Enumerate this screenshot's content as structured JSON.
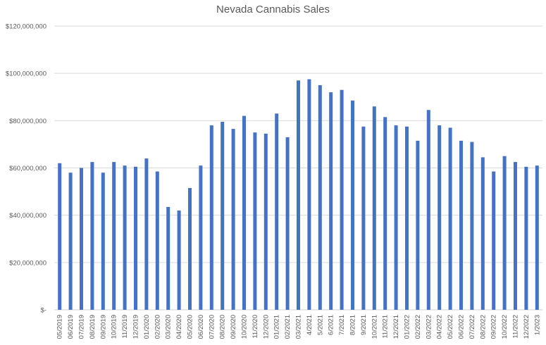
{
  "chart_data": {
    "type": "bar",
    "title": "Nevada Cannabis Sales",
    "xlabel": "",
    "ylabel": "",
    "ylim": [
      0,
      120000000
    ],
    "y_ticks": [
      {
        "value": 0,
        "label": "$-"
      },
      {
        "value": 20000000,
        "label": "$20,000,000"
      },
      {
        "value": 40000000,
        "label": "$40,000,000"
      },
      {
        "value": 60000000,
        "label": "$60,000,000"
      },
      {
        "value": 80000000,
        "label": "$80,000,000"
      },
      {
        "value": 100000000,
        "label": "$100,000,000"
      },
      {
        "value": 120000000,
        "label": "$120,000,000"
      }
    ],
    "grid": true,
    "legend": "none",
    "bar_color": "#4472c4",
    "categories": [
      "05/2019",
      "06/2019",
      "07/2019",
      "08/2019",
      "09/2019",
      "10/2019",
      "11/2019",
      "12/2019",
      "01/2020",
      "02/2020",
      "03/2020",
      "04/2020",
      "05/2020",
      "06/2020",
      "07/2020",
      "08/2020",
      "09/2020",
      "10/2020",
      "11/2020",
      "12/2020",
      "01/2021",
      "02/2021",
      "03/2021",
      "4/2021",
      "5/2021",
      "6/2021",
      "7/2021",
      "8/2021",
      "9/2021",
      "10/2021",
      "11/2021",
      "12/2021",
      "01/2022",
      "02/2022",
      "03/2022",
      "04/2022",
      "05/2022",
      "06/2022",
      "07/2022",
      "08/2022",
      "09/2022",
      "10/2022",
      "11/2022",
      "12/2022",
      "1/2023"
    ],
    "values": [
      62000000,
      58000000,
      60000000,
      62500000,
      58000000,
      62500000,
      61000000,
      60500000,
      64000000,
      58500000,
      43500000,
      42000000,
      51500000,
      61000000,
      78000000,
      79500000,
      76500000,
      82000000,
      75000000,
      74500000,
      83000000,
      73000000,
      97000000,
      97500000,
      95000000,
      92000000,
      93000000,
      88500000,
      77500000,
      86000000,
      81500000,
      78000000,
      77500000,
      71500000,
      84500000,
      78000000,
      77000000,
      71500000,
      71000000,
      64500000,
      58500000,
      65000000,
      62500000,
      60500000,
      61000000
    ]
  }
}
